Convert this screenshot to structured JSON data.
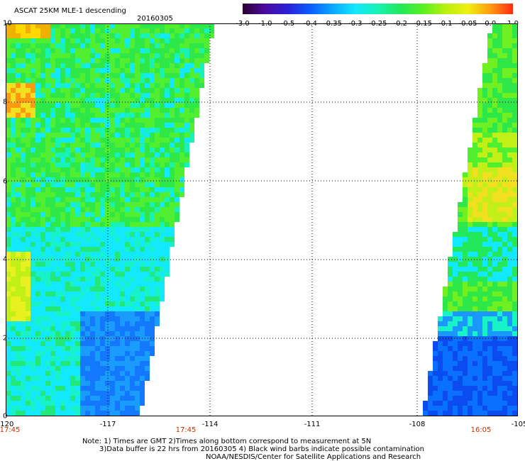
{
  "title": "ASCAT 25KM MLE-1 descending",
  "date": "20160305",
  "colorbar": {
    "labels": [
      "-3.0",
      "-1.0",
      "-0.5",
      "-0.4",
      "-0.35",
      "-0.3",
      "-0.25",
      "-0.2",
      "-0.15",
      "-0.1",
      "-0.05",
      "0.0",
      "1.0"
    ],
    "colors": [
      "#2a0030",
      "#4b0aa0",
      "#2a20d8",
      "#0a5cff",
      "#0aa8ff",
      "#12e8ff",
      "#18f2b4",
      "#22e85a",
      "#58f020",
      "#b8f010",
      "#f0f010",
      "#ff9a10",
      "#ff2a10"
    ]
  },
  "x_axis": {
    "ticks": [
      "-120",
      "-117",
      "-114",
      "-111",
      "-108",
      "-105"
    ]
  },
  "y_axis": {
    "ticks": [
      "0",
      "2",
      "4",
      "6",
      "8",
      "10"
    ]
  },
  "times": [
    "17:45",
    "17:45",
    "16:05"
  ],
  "notes": [
    "Note: 1) Times are GMT 2)Times along bottom correspond to measurement at 5N",
    "3)Data buffer is 22 hrs from 20160305 4) Black wind barbs indicate possible contamination",
    "NOAA/NESDIS/Center for Satellite Applications and Research"
  ],
  "swaths": [
    {
      "name": "west",
      "lon_range": [
        -120,
        -114.2
      ]
    },
    {
      "name": "east",
      "lon_range": [
        -107.7,
        -105
      ]
    }
  ]
}
